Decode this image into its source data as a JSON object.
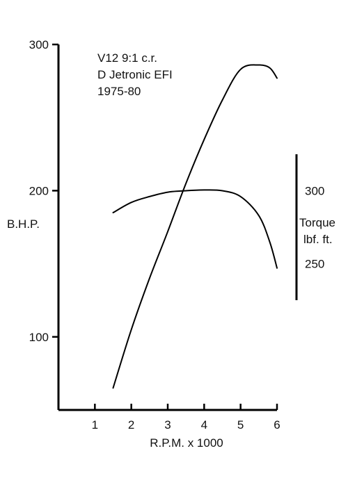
{
  "chart_data": {
    "type": "line",
    "annotation": [
      "V12 9:1 c.r.",
      "D Jetronic EFI",
      "1975-80"
    ],
    "x_axis": {
      "label": "R.P.M. x 1000",
      "ticks": [
        1,
        2,
        3,
        4,
        5,
        6
      ],
      "range": [
        0,
        6
      ]
    },
    "y_left": {
      "label": "B.H.P.",
      "ticks": [
        100,
        200,
        300
      ],
      "range": [
        50,
        300
      ]
    },
    "y_right": {
      "label_line1": "Torque",
      "label_line2": "lbf. ft.",
      "ticks": [
        250,
        300
      ],
      "range": [
        225,
        325
      ]
    },
    "series": [
      {
        "name": "B.H.P.",
        "axis": "left",
        "x": [
          1.5,
          2.0,
          2.5,
          3.0,
          3.5,
          4.0,
          4.5,
          5.0,
          5.5,
          5.8,
          6.0
        ],
        "y": [
          65,
          105,
          140,
          172,
          205,
          235,
          262,
          283,
          286,
          284,
          277
        ]
      },
      {
        "name": "Torque",
        "axis": "right",
        "x": [
          1.5,
          2.0,
          2.5,
          3.0,
          3.5,
          4.0,
          4.5,
          5.0,
          5.5,
          5.8,
          6.0
        ],
        "y": [
          285,
          292,
          296,
          299,
          300,
          300.5,
          300,
          296,
          283,
          265,
          247
        ]
      }
    ],
    "grid": false,
    "legend": "none"
  }
}
